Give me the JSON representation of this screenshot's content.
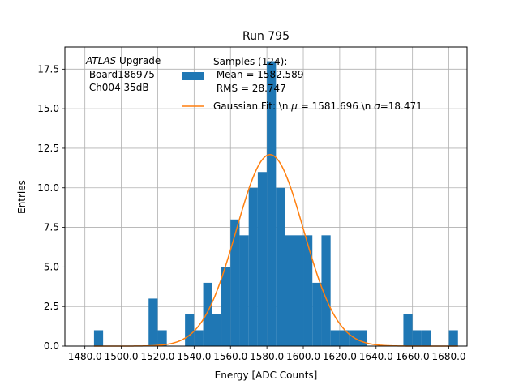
{
  "chart_data": {
    "type": "bar",
    "title": "Run 795",
    "xlabel": "Energy [ADC Counts]",
    "ylabel": "Entries",
    "xlim": [
      1469,
      1690
    ],
    "ylim": [
      0,
      18.9
    ],
    "grid": true,
    "x_ticks": [
      1480,
      1500,
      1520,
      1540,
      1560,
      1580,
      1600,
      1620,
      1640,
      1660,
      1680
    ],
    "x_tick_labels": [
      "1480.0",
      "1500.0",
      "1520.0",
      "1540.0",
      "1560.0",
      "1580.0",
      "1600.0",
      "1620.0",
      "1640.0",
      "1660.0",
      "1680.0"
    ],
    "y_ticks": [
      0,
      2.5,
      5,
      7.5,
      10,
      12.5,
      15,
      17.5
    ],
    "y_tick_labels": [
      "0.0",
      "2.5",
      "5.0",
      "7.5",
      "10.0",
      "12.5",
      "15.0",
      "17.5"
    ],
    "bin_width": 5,
    "bins": [
      {
        "x": 1485,
        "count": 1
      },
      {
        "x": 1515,
        "count": 3
      },
      {
        "x": 1520,
        "count": 1
      },
      {
        "x": 1535,
        "count": 2
      },
      {
        "x": 1540,
        "count": 1
      },
      {
        "x": 1545,
        "count": 4
      },
      {
        "x": 1550,
        "count": 2
      },
      {
        "x": 1555,
        "count": 5
      },
      {
        "x": 1560,
        "count": 8
      },
      {
        "x": 1565,
        "count": 7
      },
      {
        "x": 1570,
        "count": 10
      },
      {
        "x": 1575,
        "count": 11
      },
      {
        "x": 1580,
        "count": 18
      },
      {
        "x": 1585,
        "count": 10
      },
      {
        "x": 1590,
        "count": 7
      },
      {
        "x": 1595,
        "count": 7
      },
      {
        "x": 1600,
        "count": 7
      },
      {
        "x": 1605,
        "count": 4
      },
      {
        "x": 1610,
        "count": 7
      },
      {
        "x": 1615,
        "count": 1
      },
      {
        "x": 1620,
        "count": 1
      },
      {
        "x": 1625,
        "count": 1
      },
      {
        "x": 1630,
        "count": 1
      },
      {
        "x": 1655,
        "count": 2
      },
      {
        "x": 1660,
        "count": 1
      },
      {
        "x": 1665,
        "count": 1
      },
      {
        "x": 1680,
        "count": 1
      }
    ],
    "fit": {
      "mu": 1581.696,
      "sigma": 18.471,
      "amplitude": 12.1,
      "x_range": [
        1485,
        1685
      ]
    },
    "colors": {
      "histogram": "#1f77b4",
      "fit": "#ff7f0e",
      "grid": "#b0b0b0"
    },
    "annotation": {
      "atlas": "ATLAS",
      "upgrade": " Upgrade",
      "line2": " Board186975",
      "line3": " Ch004 35dB"
    },
    "legend": {
      "position": "top-right",
      "histogram_line1": "Samples (124):",
      "histogram_line2": " Mean = 1582.589",
      "histogram_line3": " RMS = 28.747",
      "fit_prefix": "Gaussian Fit: \\n ",
      "mu_symbol": "μ",
      "fit_middle": " = 1581.696 \\n ",
      "sigma_symbol": "σ",
      "fit_suffix": "=18.471"
    }
  }
}
